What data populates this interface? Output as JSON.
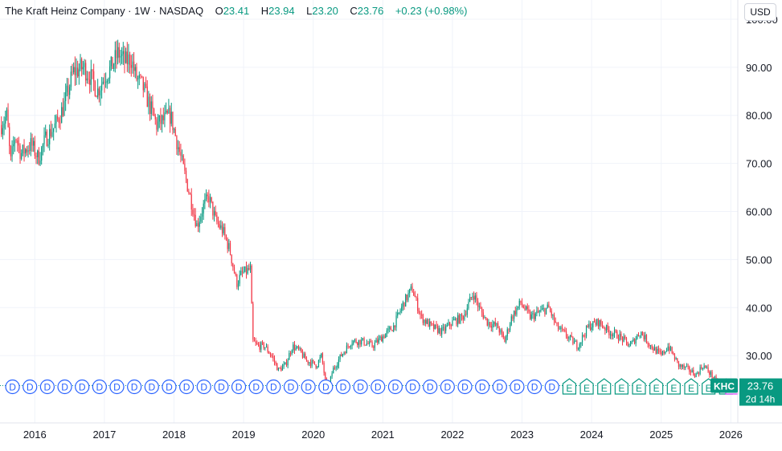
{
  "header": {
    "symbol_title": "The Kraft Heinz Company · 1W · NASDAQ",
    "o_label": "O",
    "o_value": "23.41",
    "h_label": "H",
    "h_value": "23.94",
    "l_label": "L",
    "l_value": "23.20",
    "c_label": "C",
    "c_value": "23.76",
    "change": "+0.23 (+0.98%)"
  },
  "currency_button": "USD",
  "price_label": {
    "ticker": "KHC",
    "price": "23.76",
    "countdown": "2d 14h"
  },
  "colors": {
    "up": "#089981",
    "down": "#f23645",
    "grid": "#f0f3fa",
    "axis_text": "#131722",
    "event_dividend": "#2962ff",
    "event_earnings": "#089981",
    "event_split": "#e040fb"
  },
  "events": {
    "dividend_letter": "D",
    "earnings_letter": "E",
    "split_glyph": "≈E"
  },
  "chart_data": {
    "type": "candlestick",
    "title": "The Kraft Heinz Company · 1W · NASDAQ",
    "ylim": [
      16,
      104
    ],
    "y_ticks": [
      30,
      40,
      50,
      60,
      70,
      80,
      90,
      100
    ],
    "y_tick_labels": [
      "30.00",
      "40.00",
      "50.00",
      "60.00",
      "70.00",
      "80.00",
      "90.00",
      "100.00"
    ],
    "x_range": [
      2015.5,
      2026.1
    ],
    "x_ticks": [
      2016,
      2017,
      2018,
      2019,
      2020,
      2021,
      2022,
      2023,
      2024,
      2025,
      2026
    ],
    "x_tick_labels": [
      "2016",
      "2017",
      "2018",
      "2019",
      "2020",
      "2021",
      "2022",
      "2023",
      "2024",
      "2025",
      "2026"
    ],
    "price_path": [
      [
        2015.52,
        78
      ],
      [
        2015.6,
        80
      ],
      [
        2015.65,
        70
      ],
      [
        2015.72,
        76
      ],
      [
        2015.8,
        72
      ],
      [
        2015.95,
        74
      ],
      [
        2016.05,
        71
      ],
      [
        2016.15,
        75
      ],
      [
        2016.3,
        78
      ],
      [
        2016.42,
        82
      ],
      [
        2016.55,
        89
      ],
      [
        2016.7,
        90
      ],
      [
        2016.8,
        88
      ],
      [
        2016.9,
        85
      ],
      [
        2017.0,
        88
      ],
      [
        2017.1,
        90
      ],
      [
        2017.2,
        93
      ],
      [
        2017.3,
        91
      ],
      [
        2017.38,
        92
      ],
      [
        2017.45,
        88
      ],
      [
        2017.55,
        86
      ],
      [
        2017.65,
        82
      ],
      [
        2017.75,
        78
      ],
      [
        2017.85,
        79
      ],
      [
        2017.95,
        80
      ],
      [
        2018.05,
        74
      ],
      [
        2018.15,
        68
      ],
      [
        2018.25,
        62
      ],
      [
        2018.33,
        57
      ],
      [
        2018.42,
        61
      ],
      [
        2018.5,
        63
      ],
      [
        2018.6,
        58
      ],
      [
        2018.7,
        56
      ],
      [
        2018.8,
        52
      ],
      [
        2018.9,
        45
      ],
      [
        2018.97,
        47
      ],
      [
        2019.1,
        48
      ],
      [
        2019.13,
        33
      ],
      [
        2019.2,
        32
      ],
      [
        2019.3,
        32
      ],
      [
        2019.4,
        30
      ],
      [
        2019.5,
        27
      ],
      [
        2019.6,
        28
      ],
      [
        2019.7,
        32
      ],
      [
        2019.8,
        31
      ],
      [
        2019.9,
        29
      ],
      [
        2020.05,
        28
      ],
      [
        2020.12,
        30
      ],
      [
        2020.2,
        22
      ],
      [
        2020.28,
        27
      ],
      [
        2020.4,
        30
      ],
      [
        2020.55,
        33
      ],
      [
        2020.7,
        33
      ],
      [
        2020.85,
        32
      ],
      [
        2021.0,
        34
      ],
      [
        2021.15,
        36
      ],
      [
        2021.3,
        41
      ],
      [
        2021.42,
        44
      ],
      [
        2021.55,
        38
      ],
      [
        2021.7,
        36
      ],
      [
        2021.85,
        35
      ],
      [
        2022.0,
        37
      ],
      [
        2022.15,
        38
      ],
      [
        2022.3,
        43
      ],
      [
        2022.38,
        40
      ],
      [
        2022.5,
        37
      ],
      [
        2022.65,
        36
      ],
      [
        2022.75,
        33
      ],
      [
        2022.85,
        38
      ],
      [
        2022.98,
        41
      ],
      [
        2023.12,
        38
      ],
      [
        2023.25,
        39
      ],
      [
        2023.38,
        40
      ],
      [
        2023.5,
        36
      ],
      [
        2023.65,
        34
      ],
      [
        2023.8,
        32
      ],
      [
        2023.95,
        36
      ],
      [
        2024.1,
        37
      ],
      [
        2024.25,
        35
      ],
      [
        2024.4,
        34
      ],
      [
        2024.55,
        32
      ],
      [
        2024.7,
        35
      ],
      [
        2024.85,
        32
      ],
      [
        2025.0,
        30
      ],
      [
        2025.1,
        32
      ],
      [
        2025.25,
        28
      ],
      [
        2025.4,
        27
      ],
      [
        2025.5,
        26
      ],
      [
        2025.6,
        28
      ],
      [
        2025.75,
        25.5
      ],
      [
        2025.82,
        23.76
      ]
    ],
    "last_price": 23.76,
    "dividend_events": [
      2015.68,
      2015.93,
      2016.18,
      2016.43,
      2016.68,
      2016.93,
      2017.18,
      2017.43,
      2017.68,
      2017.93,
      2018.18,
      2018.43,
      2018.68,
      2018.93,
      2019.18,
      2019.43,
      2019.68,
      2019.93,
      2020.18,
      2020.43,
      2020.68,
      2020.93,
      2021.18,
      2021.43,
      2021.68,
      2021.93,
      2022.18,
      2022.43,
      2022.68,
      2022.93,
      2023.18,
      2023.43
    ],
    "earnings_events": [
      2023.68,
      2023.93,
      2024.18,
      2024.43,
      2024.68,
      2024.93,
      2025.18,
      2025.43,
      2025.68,
      2025.93
    ]
  }
}
